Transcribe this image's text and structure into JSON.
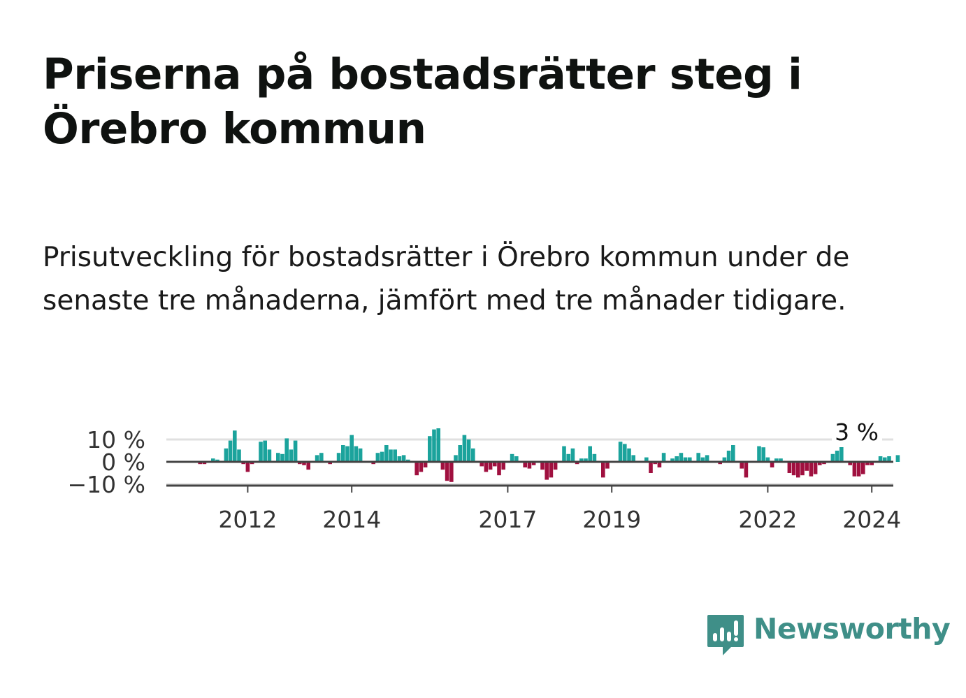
{
  "title": "Priserna på bostadsrätter steg i Örebro kommun",
  "subtitle": "Prisutveckling för bostadsrätter i Örebro kommun under de senaste tre månaderna, jämfört med tre månader tidigare.",
  "brand": {
    "name": "Newsworthy",
    "color": "#3f8f88"
  },
  "colors": {
    "positive": "#1ba39c",
    "negative": "#a0103f",
    "grid": "#e0e0e0",
    "axis": "#444444"
  },
  "chart_data": {
    "type": "bar",
    "x_start": "2011-01",
    "frequency": "monthly",
    "values": [
      0,
      -1,
      -1,
      0,
      1.5,
      1,
      0,
      6,
      9.5,
      14,
      5.5,
      -1,
      -4.5,
      -1,
      0,
      9,
      9.5,
      5.5,
      0,
      4,
      3.5,
      10.5,
      5.5,
      9.5,
      -1,
      -1.5,
      -3.5,
      0,
      3,
      4,
      0,
      -1,
      0,
      4,
      7.5,
      7,
      12,
      7,
      6,
      0,
      0,
      -1,
      4,
      4.5,
      7.5,
      5.5,
      5.5,
      2.5,
      3,
      1,
      0,
      -6,
      -4.5,
      -2.5,
      11.5,
      14.5,
      15,
      -3.5,
      -8.5,
      -9,
      3,
      7.5,
      12,
      10,
      6,
      0,
      -2,
      -4.5,
      -3.5,
      -2,
      -6,
      -3.5,
      0,
      3.5,
      2.5,
      0,
      -2.5,
      -3,
      -1.5,
      0,
      -3.5,
      -8,
      -7,
      -3.5,
      0,
      7,
      3.5,
      6,
      -1,
      1.5,
      1.5,
      7,
      3.5,
      0,
      -7,
      -3,
      0,
      0,
      9,
      8,
      6,
      3,
      0,
      0,
      2,
      -5,
      -1,
      -2.5,
      4,
      0,
      1.5,
      2.5,
      4,
      2,
      2,
      0,
      4,
      2,
      3,
      0,
      0,
      -1,
      2,
      5,
      7.5,
      0,
      -3,
      -7,
      0,
      0,
      7,
      6.5,
      2,
      -2.5,
      1.5,
      1.5,
      0,
      -5,
      -6,
      -7,
      -6,
      -4,
      -6.5,
      -5.5,
      -1.5,
      -1,
      0,
      3.5,
      5,
      8.5,
      0,
      -1.5,
      -6.5,
      -6.5,
      -5.5,
      -1.5,
      -1.5,
      0,
      2.5,
      2,
      2.5,
      0,
      3
    ],
    "y_ticks": [
      "10 %",
      "0 %",
      "−10 %"
    ],
    "y_tick_values": [
      10,
      0,
      -10
    ],
    "ylim": [
      -12,
      16
    ],
    "x_ticks": [
      "2012",
      "2014",
      "2017",
      "2019",
      "2022",
      "2024"
    ],
    "x_tick_values": [
      "2012-01",
      "2014-01",
      "2017-01",
      "2019-01",
      "2022-01",
      "2024-01"
    ],
    "last_value_label": "3 %",
    "grid": true
  }
}
